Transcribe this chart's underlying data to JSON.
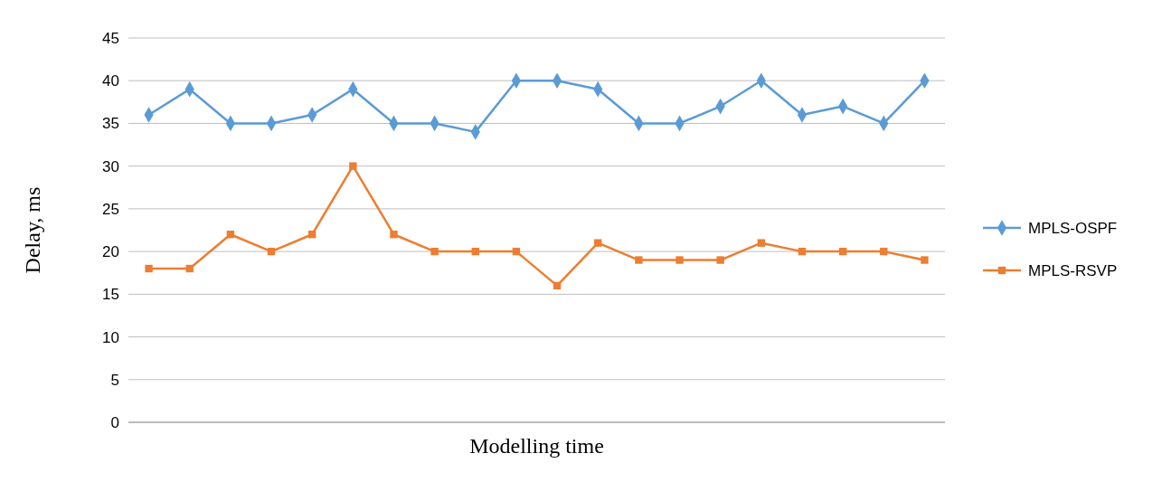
{
  "chart_data": {
    "type": "line",
    "xlabel": "Modelling time",
    "ylabel": "Delay, ms",
    "categories": [
      null,
      null,
      null,
      null,
      null,
      null,
      null,
      null,
      null,
      null,
      null,
      null,
      null,
      null,
      null,
      null,
      null,
      null,
      null,
      null
    ],
    "series": [
      {
        "name": "MPLS-OSPF",
        "color": "#5b9bd5",
        "marker": "diamond",
        "values": [
          36,
          39,
          35,
          35,
          36,
          39,
          35,
          35,
          34,
          40,
          40,
          39,
          35,
          35,
          37,
          40,
          36,
          37,
          35,
          40
        ]
      },
      {
        "name": "MPLS-RSVP",
        "color": "#ed7d31",
        "marker": "square",
        "values": [
          18,
          18,
          22,
          20,
          22,
          30,
          22,
          20,
          20,
          20,
          16,
          21,
          19,
          19,
          19,
          21,
          20,
          20,
          20,
          19
        ]
      }
    ],
    "ylim": [
      0,
      45
    ],
    "yticks": [
      0,
      5,
      10,
      15,
      20,
      25,
      30,
      35,
      40,
      45
    ],
    "grid": "y",
    "legend": "right",
    "line_style": "solid"
  }
}
